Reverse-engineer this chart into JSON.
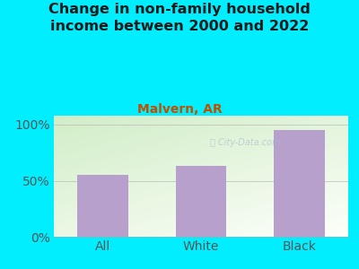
{
  "title": "Change in non-family household\nincome between 2000 and 2022",
  "subtitle": "Malvern, AR",
  "categories": [
    "All",
    "White",
    "Black"
  ],
  "values": [
    55,
    63,
    95
  ],
  "bar_color": "#b8a0cc",
  "background_outer": "#00eeff",
  "background_inner_top_left": "#d4edcc",
  "background_inner_bottom_right": "#f8fff8",
  "title_color": "#1a1a1a",
  "subtitle_color": "#c05000",
  "axis_label_color": "#555555",
  "yticks": [
    0,
    50,
    100
  ],
  "ytick_labels": [
    "0%",
    "50%",
    "100%"
  ],
  "ylim": [
    0,
    108
  ],
  "title_fontsize": 11.5,
  "subtitle_fontsize": 10,
  "tick_fontsize": 10,
  "watermark": "Ⓜ City-Data.com"
}
